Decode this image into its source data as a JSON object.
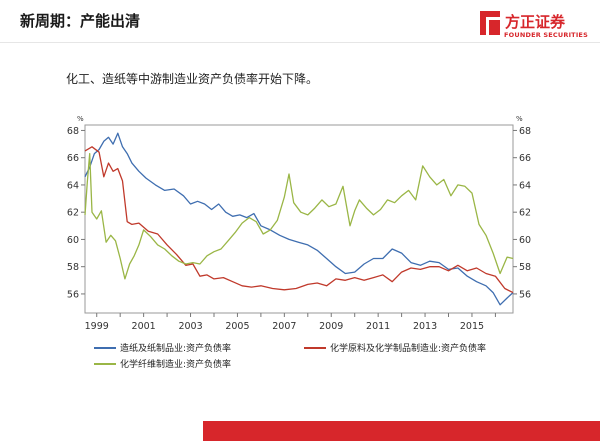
{
  "header": {
    "title": "新周期：产能出清",
    "logo_cn": "方正证券",
    "logo_en": "FOUNDER SECURITIES",
    "brand_color": "#d7262b"
  },
  "subtitle": "化工、造纸等中游制造业资产负债率开始下降。",
  "chart_data": {
    "type": "line",
    "title": "",
    "xlabel": "",
    "ylabel": "",
    "unit_left": "%",
    "unit_right": "%",
    "xlim": [
      1998.5,
      2016.75
    ],
    "ylim": [
      54.6,
      68.4
    ],
    "x_ticks": [
      1999,
      2001,
      2003,
      2005,
      2007,
      2009,
      2011,
      2013,
      2015
    ],
    "y_ticks": [
      56,
      58,
      60,
      62,
      64,
      66,
      68
    ],
    "grid": false,
    "legend_position": "bottom",
    "series": [
      {
        "name": "造纸及纸制品业:资产负债率",
        "color": "#3f6eb0",
        "x": [
          1998.5,
          1998.7,
          1998.9,
          1999.1,
          1999.3,
          1999.5,
          1999.7,
          1999.9,
          2000.1,
          2000.3,
          2000.5,
          2000.8,
          2001.1,
          2001.5,
          2001.9,
          2002.3,
          2002.7,
          2003.0,
          2003.3,
          2003.6,
          2003.9,
          2004.2,
          2004.5,
          2004.8,
          2005.1,
          2005.4,
          2005.7,
          2006.0,
          2006.4,
          2006.8,
          2007.2,
          2007.6,
          2008.0,
          2008.4,
          2008.8,
          2009.2,
          2009.6,
          2010.0,
          2010.4,
          2010.8,
          2011.2,
          2011.6,
          2012.0,
          2012.4,
          2012.8,
          2013.2,
          2013.6,
          2014.0,
          2014.4,
          2014.8,
          2015.2,
          2015.6,
          2015.9,
          2016.2,
          2016.5,
          2016.75
        ],
        "values": [
          64.6,
          65.3,
          66.3,
          66.6,
          67.2,
          67.5,
          67.0,
          67.8,
          66.8,
          66.3,
          65.6,
          65.0,
          64.5,
          64.0,
          63.6,
          63.7,
          63.2,
          62.6,
          62.8,
          62.6,
          62.2,
          62.6,
          62.0,
          61.7,
          61.8,
          61.6,
          61.9,
          61.0,
          60.7,
          60.3,
          60.0,
          59.8,
          59.6,
          59.2,
          58.6,
          58.0,
          57.5,
          57.6,
          58.2,
          58.6,
          58.6,
          59.3,
          59.0,
          58.3,
          58.1,
          58.4,
          58.3,
          57.8,
          57.9,
          57.3,
          56.9,
          56.6,
          56.1,
          55.2,
          55.7,
          56.1
        ]
      },
      {
        "name": "化学原料及化学制品制造业:资产负债率",
        "color": "#c0392b",
        "x": [
          1998.5,
          1998.8,
          1999.1,
          1999.3,
          1999.5,
          1999.7,
          1999.9,
          2000.1,
          2000.3,
          2000.5,
          2000.8,
          2001.2,
          2001.6,
          2002.0,
          2002.4,
          2002.8,
          2003.1,
          2003.4,
          2003.7,
          2004.0,
          2004.4,
          2004.8,
          2005.2,
          2005.6,
          2006.0,
          2006.5,
          2007.0,
          2007.5,
          2008.0,
          2008.4,
          2008.8,
          2009.2,
          2009.6,
          2010.0,
          2010.4,
          2010.8,
          2011.2,
          2011.6,
          2012.0,
          2012.4,
          2012.8,
          2013.2,
          2013.6,
          2014.0,
          2014.4,
          2014.8,
          2015.2,
          2015.6,
          2016.0,
          2016.4,
          2016.75
        ],
        "values": [
          66.5,
          66.8,
          66.4,
          64.6,
          65.6,
          65.0,
          65.2,
          64.3,
          61.3,
          61.1,
          61.2,
          60.6,
          60.4,
          59.6,
          58.9,
          58.1,
          58.2,
          57.3,
          57.4,
          57.1,
          57.2,
          56.9,
          56.6,
          56.5,
          56.6,
          56.4,
          56.3,
          56.4,
          56.7,
          56.8,
          56.6,
          57.1,
          57.0,
          57.2,
          57.0,
          57.2,
          57.4,
          56.9,
          57.6,
          57.9,
          57.8,
          58.0,
          58.0,
          57.7,
          58.1,
          57.7,
          57.9,
          57.5,
          57.3,
          56.4,
          56.1
        ]
      },
      {
        "name": "化学纤维制造业:资产负债率",
        "color": "#9ab646",
        "x": [
          1998.5,
          1998.6,
          1998.7,
          1998.8,
          1999.0,
          1999.2,
          1999.4,
          1999.6,
          1999.8,
          2000.0,
          2000.2,
          2000.4,
          2000.6,
          2000.8,
          2001.0,
          2001.3,
          2001.6,
          2001.9,
          2002.2,
          2002.5,
          2002.8,
          2003.1,
          2003.4,
          2003.7,
          2004.0,
          2004.3,
          2004.6,
          2004.9,
          2005.2,
          2005.5,
          2005.8,
          2006.1,
          2006.4,
          2006.7,
          2007.0,
          2007.2,
          2007.4,
          2007.7,
          2008.0,
          2008.3,
          2008.6,
          2008.9,
          2009.2,
          2009.5,
          2009.8,
          2010.0,
          2010.2,
          2010.5,
          2010.8,
          2011.1,
          2011.4,
          2011.7,
          2012.0,
          2012.3,
          2012.6,
          2012.9,
          2013.2,
          2013.5,
          2013.8,
          2014.1,
          2014.4,
          2014.7,
          2015.0,
          2015.3,
          2015.6,
          2015.9,
          2016.2,
          2016.5,
          2016.75
        ],
        "values": [
          61.8,
          64.2,
          66.3,
          62.0,
          61.5,
          62.1,
          59.8,
          60.3,
          59.9,
          58.6,
          57.1,
          58.2,
          58.8,
          59.6,
          60.7,
          60.2,
          59.6,
          59.3,
          58.8,
          58.4,
          58.2,
          58.3,
          58.2,
          58.8,
          59.1,
          59.3,
          59.9,
          60.5,
          61.2,
          61.6,
          61.3,
          60.4,
          60.7,
          61.4,
          63.1,
          64.8,
          62.7,
          62.0,
          61.8,
          62.3,
          62.9,
          62.4,
          62.6,
          63.9,
          61.0,
          62.1,
          62.9,
          62.3,
          61.8,
          62.2,
          62.9,
          62.7,
          63.2,
          63.6,
          62.9,
          65.4,
          64.6,
          64.0,
          64.4,
          63.2,
          64.0,
          63.9,
          63.4,
          61.1,
          60.3,
          59.0,
          57.5,
          58.7,
          58.6
        ]
      }
    ]
  }
}
